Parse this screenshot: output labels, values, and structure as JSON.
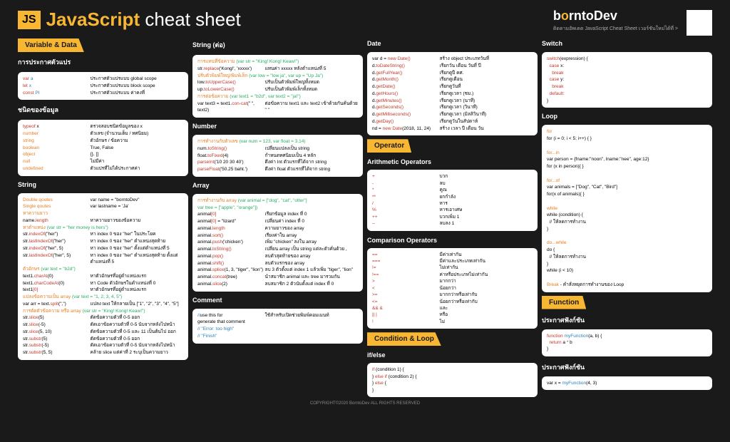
{
  "header": {
    "badge": "JS",
    "title_main": "JavaScript",
    "title_sub": "cheat sheet",
    "brand_pre": "b",
    "brand_o": "o",
    "brand_post": "rntoDev",
    "tagline": "ติดตามอัพเดต JavaScript Cheat Sheet เวอร์ชันใหม่ได้ที่ >"
  },
  "col1": {
    "s1": {
      "title": "Variable & Data"
    },
    "s1a": {
      "title": "การประกาศตัวแปร",
      "rows": [
        {
          "l": "<span class='k-red'>var</span> <span class='k-blue'>a</span>",
          "r": "ประกาศตัวแปรแบบ global scope"
        },
        {
          "l": "<span class='k-red'>let</span> <span class='k-blue'>x</span>",
          "r": "ประกาศตัวแปรแบบ block scope"
        },
        {
          "l": "<span class='k-red'>const</span> <span class='k-blue'>PI</span>",
          "r": "ประกาศตัวแปรแบบ ค่าคงที่"
        }
      ]
    },
    "s1b": {
      "title": "ชนิดของข้อมูล",
      "rows": [
        {
          "l": "<span class='k-red'>typeof</span> x",
          "r": "ตรวจสอบชนิดข้อมูลของ x"
        },
        {
          "l": "<span class='k-orange'>number</span>",
          "r": "ตัวเลข (จำนวนเต็ม / ทศนิยม)"
        },
        {
          "l": "<span class='k-orange'>string</span>",
          "r": "ตัวอักษร / ข้อความ"
        },
        {
          "l": "<span class='k-orange'>boolean</span>",
          "r": "True, False"
        },
        {
          "l": "<span class='k-orange'>object</span>",
          "r": "{}, []"
        },
        {
          "l": "<span class='k-orange'>null</span>",
          "r": "ไม่มีค่า"
        },
        {
          "l": "<span class='k-orange'>undefined</span>",
          "r": "ตัวแปรที่ไม่ได้ประกาศค่า"
        }
      ]
    },
    "s2": {
      "title": "String",
      "b1": [
        {
          "l": "<span class='k-orange'>Double qoutes</span>",
          "r": "var name = \"borntoDev\""
        },
        {
          "l": "<span class='k-orange'>Single qoutes</span>",
          "r": "var lastname = 'Ja'"
        }
      ],
      "h1": "<span class='k-orange'>หาความยาว</span>",
      "b2": [
        {
          "l": "name.<span class='k-red'>length</span>",
          "r": "หาความยาวของข้อความ"
        }
      ],
      "h2": "<span class='k-orange'>หาตำแหน่ง</span> <span class='k-green'>(var str = \"her money is hers\")</span>",
      "b3": [
        {
          "l": "str.<span class='k-red'>indexOf</span>(\"her\")",
          "r": "หา index 0 ของ \"her\" ในประโยค"
        },
        {
          "l": "str.<span class='k-red'>lastIndexOf</span>(\"her\")",
          "r": "หา index 0 ของ \"her\" ตำแหน่งสุดท้าย"
        },
        {
          "l": "str.<span class='k-red'>indexOf</span>(\"her\", 5)",
          "r": "หา index 0 ของ \"her\" ตั้งแต่ตำแหน่งที่ 5"
        },
        {
          "l": "str.<span class='k-red'>lastIndexOf</span>(\"her\", 5)",
          "r": "หา index 0 ของ \"her\" ตำแหน่งสุดท้าย ตั้งแต่ตำแหน่งที่ 5"
        }
      ],
      "h3": "<span class='k-orange'>ตัวอักษร</span> <span class='k-green'>(var text = \"b2d\")</span>",
      "b4": [
        {
          "l": "text1.<span class='k-red'>charAt</span>(0)",
          "r": "หาตัวอักษรที่อยู่ตำแหน่งแรก"
        },
        {
          "l": "text1.<span class='k-red'>charCodeAt</span>(0)",
          "r": "หา Code ตัวอักษรในตำแหน่งที่ 0"
        },
        {
          "l": "text1<span class='k-red'>[0]</span>",
          "r": "หาตัวอักษรที่อยู่ตำแหน่งแรก"
        }
      ],
      "h4": "<span class='k-orange'>แปลงข้อความเป็น array</span> <span class='k-green'>(var text = \"1, 2, 3, 4, 5\")</span>",
      "b5": [
        {
          "l": "var arr = text.<span class='k-red'>split</span>(\",\")",
          "r": "แปลง text ให้กลายเป็น [\"1\", \"2\", \"3\", \"4\", \"5\"]"
        }
      ],
      "h5": "<span class='k-orange'>การตัดตัวข้อความ หรือ array</span> <span class='k-green'>(var str = \"King! Kong! Keaw!\")</span>",
      "b6": [
        {
          "l": "str.<span class='k-red'>slice</span>(5)",
          "r": "ตัดข้อความตัวที่ 0-5 ออก"
        },
        {
          "l": "str.<span class='k-red'>slice</span>(-5)",
          "r": "ตัดเอาข้อความตัวที่ 0-5 นับจากหลังไปหน้า"
        },
        {
          "l": "str.<span class='k-red'>slice</span>(5, 10)",
          "r": "ตัดข้อความตัวที่ 0-5 และ 11 เป็นต้นไป ออก"
        },
        {
          "l": "str.<span class='k-red'>substr</span>(5)",
          "r": "ตัดข้อความตัวที่ 0-5 ออก"
        },
        {
          "l": "str.<span class='k-red'>substr</span>(-5)",
          "r": "ตัดเอาข้อความตัวที่ 0-5 นับจากหลังไปหน้า"
        },
        {
          "l": "str.<span class='k-red'>substr</span>(5, 5)",
          "r": "คล้าย slice แต่ค่าที่ 2 ระบุเป็นความยาว"
        }
      ]
    }
  },
  "col2": {
    "s1": {
      "title": "String (ต่อ)",
      "h1": "<span class='k-orange'>การแทนที่ข้อความ</span> <span class='k-green'>(var str = \"King! Kong! Keaw!\")</span>",
      "b1": [
        {
          "l": "str.<span class='k-red'>replace</span>('Kong!', 'xxxxx')",
          "r": "แทนค่า xxxxx หลังตำแหน่งที่ 5"
        }
      ],
      "h2": "<span class='k-orange'>ปรับตัวพิมพ์ใหญ่/พิมพ์เล็ก</span> <span class='k-green'>(var low = \"low ja\", var up = \"Up Ja\")</span>",
      "b2": [
        {
          "l": "low.<span class='k-red'>toUpperCase()</span>",
          "r": "ปรับเป็นตัวพิมพ์ใหญ่ทั้งหมด"
        },
        {
          "l": "up.<span class='k-red'>toLowerCase()</span>",
          "r": "ปรับเป็นตัวพิมพ์เล็กทั้งหมด"
        }
      ],
      "h3": "<span class='k-orange'>การต่อข้อความ</span> <span class='k-green'>(var text1 = \"b2d\", var text2 = \"ja!\")</span>",
      "b3": [
        {
          "l": "var text3 = text1.<span class='k-red'>con-cat</span>(\" \", text2)",
          "r": "ต่อข้อความ text1 และ text2 เข้าด้วยกันคั่นด้วย \" \""
        }
      ]
    },
    "s2": {
      "title": "Number",
      "h1": "<span class='k-orange'>การทำงานกับตัวเลข</span> <span class='k-green'>(var num = 123, var float = 3.14)</span>",
      "b1": [
        {
          "l": "num.<span class='k-red'>toString()</span>",
          "r": "เปลี่ยนแปลงเป็น string"
        },
        {
          "l": "float.<span class='k-red'>toFixed</span>(4)",
          "r": "กำหนดทศนิยมเป็น 4 หลัก"
        },
        {
          "l": "<span class='k-red'>parseInt</span>('10 20 30 40')",
          "r": "ดึงค่า Int ตัวแรกที่ได้จาก string"
        },
        {
          "l": "<span class='k-red'>parseFloat</span>('50.25 baht.')",
          "r": "ดึงค่า float ตัวแรกที่ได้จาก string"
        }
      ]
    },
    "s3": {
      "title": "Array",
      "h1": "<span class='k-orange'>การทำงานกับ array</span> <span class='k-green'>(var animal = [\"dog\", \"cat\", \"otter\"]<br>var tree = [\"apple\", \"orange\"])</span>",
      "b1": [
        {
          "l": "animal<span class='k-red'>[0]</span>",
          "r": "เรียกข้อมูล index ที่ 0"
        },
        {
          "l": "animal<span class='k-red'>[0]</span> = \"lizard\"",
          "r": "เปลี่ยนค่า index ที่ 0"
        },
        {
          "l": "animal.<span class='k-red'>length</span>",
          "r": "ความยาวของ array"
        },
        {
          "l": "animal.<span class='k-red'>sort()</span>",
          "r": "เรียงค่าใน array"
        },
        {
          "l": "animal.<span class='k-red'>push</span>('chicken')",
          "r": "เพิ่ม \"chicken\" ลงใน array"
        },
        {
          "l": "animal.<span class='k-red'>toString()</span>",
          "r": "เปลี่ยน array เป็น string แต่ละตัวคั่นด้วย ,"
        },
        {
          "l": "animal.<span class='k-red'>pop()</span>",
          "r": "ลบตัวสุดท้ายของ array"
        },
        {
          "l": "animal.<span class='k-red'>shift()</span>",
          "r": "ลบตัวแรกของ array"
        },
        {
          "l": "animal.<span class='k-red'>splice</span>(1, 3, \"tiger\", \"lion\")",
          "r": "ลบ 3 ตัวตั้งแต่ index 1 แล้วเพิ่ม \"tiger\", \"lion\""
        },
        {
          "l": "animal.<span class='k-red'>concat</span>(tree)",
          "r": "นำสมาชิก animal และ tree มารวมกัน"
        },
        {
          "l": "animal.<span class='k-red'>slice</span>(2)",
          "r": "ลบสมาชิก 2 ตัวนับตั้งแต่ index ที่ 0"
        }
      ]
    },
    "s4": {
      "title": "Comment",
      "b1": [
        {
          "l": "<span class='k-blue'>//</span>use this for",
          "r": "ใช้สำหรับเปิดช่วยพิมพ์คอมเมนท์"
        },
        {
          "l": "generate that comment",
          "": ""
        },
        {
          "l": "",
          "": ""
        },
        {
          "l": "<span class='k-blue'>// \"Error: too high\"</span>",
          "": ""
        },
        {
          "l": "<span class='k-blue'>// \"Finish\"</span>",
          "": ""
        }
      ]
    }
  },
  "col3": {
    "s1": {
      "title": "Date",
      "b1": [
        {
          "l": "var d = <span class='k-red'>new Date()</span>",
          "r": "สร้าง object ประเภทวันที่"
        },
        {
          "l": "d.<span class='k-red'>toDateString()</span>",
          "r": "เรียกวัน เดือน วันที่ ปี"
        },
        {
          "l": "d.<span class='k-red'>getFullYear()</span>",
          "r": "เรียกดูปี คศ."
        },
        {
          "l": "d.<span class='k-red'>getMonth()</span>",
          "r": "เรียกดูเดือน"
        },
        {
          "l": "d.<span class='k-red'>getDate()</span>",
          "r": "เรียกดูวันที่"
        },
        {
          "l": "d.<span class='k-red'>getHours()</span>",
          "r": "เรียกดูเวลา (ชม.)"
        },
        {
          "l": "d.<span class='k-red'>getMinutes()</span>",
          "r": "เรียกดูเวลา (นาที)"
        },
        {
          "l": "d.<span class='k-red'>getSeconds()</span>",
          "r": "เรียกดูเวลา (วินาที)"
        },
        {
          "l": "d.<span class='k-red'>getMilliseconds()</span>",
          "r": "เรียกดูเวลา (มิลลิวินาที)"
        },
        {
          "l": "d.<span class='k-red'>getDay()</span>",
          "r": "เรียกดูวันในสัปดาห์"
        },
        {
          "l": "nd = <span class='k-red'>new Date</span>(2018, 11, 24)",
          "r": "สร้าง เวลา ปี เดือน วัน"
        }
      ]
    },
    "s2": {
      "title": "Operator"
    },
    "s2a": {
      "title": "Arithmetic Operators",
      "b1": [
        {
          "l": "<span class='k-red'>+</span>",
          "r": "บวก"
        },
        {
          "l": "<span class='k-red'>-</span>",
          "r": "ลบ"
        },
        {
          "l": "<span class='k-red'>*</span>",
          "r": "คูณ"
        },
        {
          "l": "<span class='k-red'>**</span>",
          "r": "ยกกำลัง"
        },
        {
          "l": "<span class='k-red'>/</span>",
          "r": "หาร"
        },
        {
          "l": "<span class='k-red'>%</span>",
          "r": "หารเอาเศษ"
        },
        {
          "l": "<span class='k-red'>++</span>",
          "r": "บวกเพิ่ม 1"
        },
        {
          "l": "<span class='k-red'>--</span>",
          "r": "ลบลง 1"
        }
      ]
    },
    "s2b": {
      "title": "Comparison Operators",
      "b1": [
        {
          "l": "<span class='k-red'>==</span>",
          "r": "มีค่าเท่ากัน"
        },
        {
          "l": "<span class='k-red'>===</span>",
          "r": "มีค่าและประเภทเท่ากัน"
        },
        {
          "l": "<span class='k-red'>!=</span>",
          "r": "ไม่เท่ากัน"
        },
        {
          "l": "<span class='k-red'>!==</span>",
          "r": "ค่าหรือประเภทไม่เท่ากัน"
        },
        {
          "l": "<span class='k-red'>></span>",
          "r": "มากกว่า"
        },
        {
          "l": "<span class='k-red'><</span>",
          "r": "น้อยกว่า"
        },
        {
          "l": "<span class='k-red'>>=</span>",
          "r": "มากกว่าหรือเท่ากับ"
        },
        {
          "l": "<span class='k-red'><=</span>",
          "r": "น้อยกว่าหรือเท่ากับ"
        },
        {
          "l": "<span class='k-red'>&& &</span>",
          "r": "และ"
        },
        {
          "l": "<span class='k-red'>|| |</span>",
          "r": "หรือ"
        },
        {
          "l": "<span class='k-red'>!</span>",
          "r": "ไม่"
        }
      ]
    },
    "s3": {
      "title": "Condition & Loop"
    },
    "s3a": {
      "title": "if/else",
      "code": "<span class='k-red'>if</span> (condition 1) {<br>} <span class='k-red'>else if</span> (condition 2) {<br>} <span class='k-red'>else</span> { <br>}"
    }
  },
  "col4": {
    "s1": {
      "title": "Switch",
      "code": "<span class='k-red'>switch</span>(expression) {<br>&nbsp;&nbsp;<span class='k-red'>case</span> x:<br>&nbsp;&nbsp;&nbsp;&nbsp;<span class='k-red'>break</span><br>&nbsp;&nbsp;<span class='k-red'>case</span> y:<br>&nbsp;&nbsp;&nbsp;&nbsp;<span class='k-red'>break</span><br>&nbsp;&nbsp;<span class='k-red'>default:</span><br>}"
    },
    "s2": {
      "title": "Loop",
      "h1": "<span class='k-orange'>for</span>",
      "c1": "for (i = 0; i < 5; i++) { }",
      "h2": "<span class='k-orange'>for...in</span>",
      "c2": "var person = {fname:\"noon\", lname:\"nee\", age:12}<br>for (x in person){ }",
      "h3": "<span class='k-orange'>for...of</span>",
      "c3": "var animals = [\"Dog\", \"Cat\", \"Bird\"]<br>for(x of animals){ }",
      "h4": "<span class='k-orange'>while</span>",
      "c4": "while (condition) {<br>&nbsp;&nbsp;// ให้ลดการทำงาน<br>}",
      "h5": "<span class='k-orange'>do...while</span>",
      "c5": "do {<br>&nbsp;&nbsp;// ให้ลดการทำงาน<br>}<br>while (i < 10)",
      "h6": "<span class='k-orange'>Break</span> - คำสั่งหยุดการทำงานของ Loop"
    },
    "s3": {
      "title": "Function"
    },
    "s3a": {
      "title": "ประกาศฟังก์ชัน",
      "code": "<span class='k-red'>function</span> <span class='k-blue'>myFunction</span>(a, b) {<br>&nbsp;&nbsp;<span class='k-red'>return</span> a <span class='k-red'>*</span> b<br>}"
    },
    "s3b": {
      "title": "ประกาศฟังก์ชัน",
      "code": "var x = <span class='k-blue'>myFunction</span>(4, 3)"
    }
  },
  "footer": "COPYRIGHT©2020 BorntoDev ALL RIGHTS RESERVED"
}
